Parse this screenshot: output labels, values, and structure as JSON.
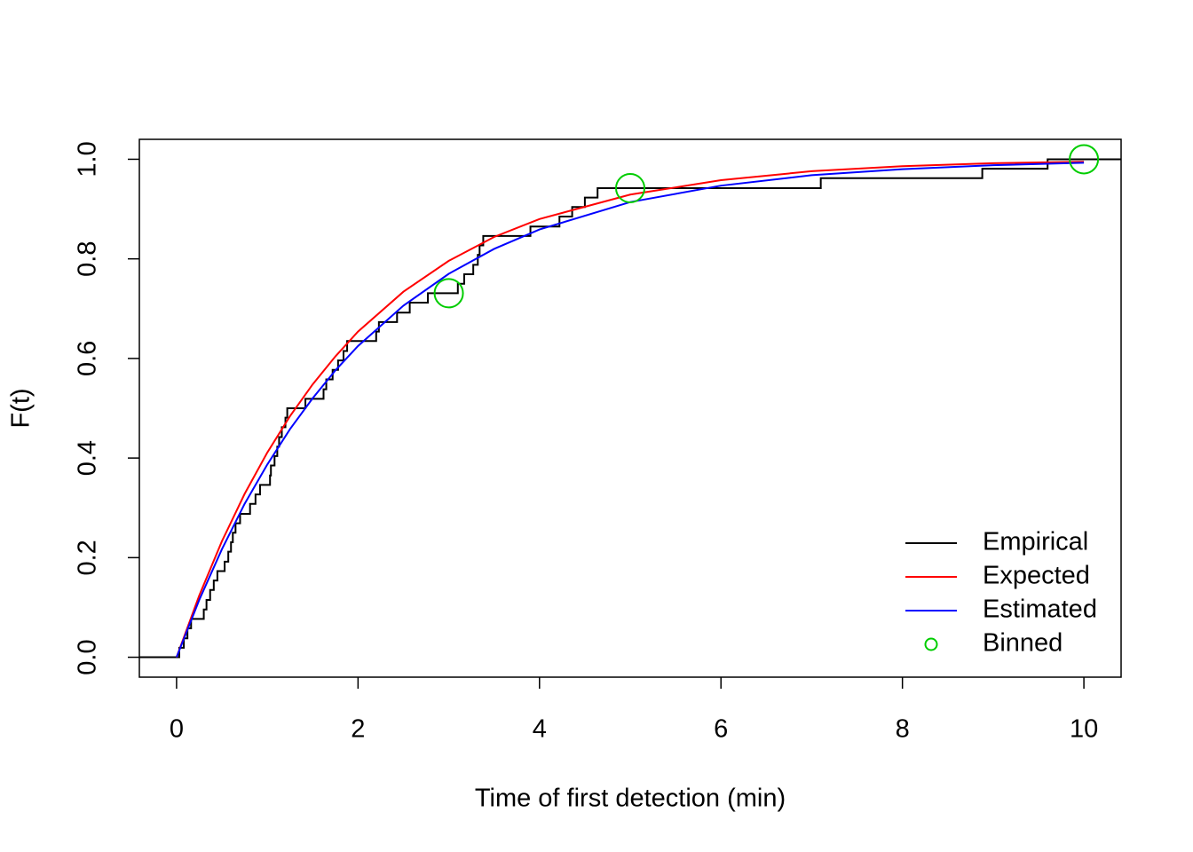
{
  "chart_data": {
    "type": "line",
    "x_label": "Time of first detection (min)",
    "y_label": "F(t)",
    "xlim": [
      -0.41,
      10.41
    ],
    "ylim": [
      -0.04,
      1.04
    ],
    "xticks": [
      0,
      2,
      4,
      6,
      8,
      10
    ],
    "yticks": [
      {
        "value": 0,
        "label": "0.0"
      },
      0.2,
      0.4,
      0.6,
      0.8,
      {
        "value": 1,
        "label": "1.0"
      }
    ],
    "legend": "bottom-right",
    "series": [
      {
        "name": "Empirical",
        "color": "#000000",
        "style": "step",
        "x": [
          0,
          0.03,
          0.08,
          0.12,
          0.16,
          0.3,
          0.33,
          0.37,
          0.41,
          0.45,
          0.53,
          0.57,
          0.6,
          0.62,
          0.65,
          0.7,
          0.81,
          0.87,
          0.92,
          1.03,
          1.04,
          1.08,
          1.11,
          1.13,
          1.16,
          1.2,
          1.22,
          1.42,
          1.62,
          1.65,
          1.72,
          1.78,
          1.84,
          1.88,
          2.2,
          2.23,
          2.43,
          2.57,
          2.77,
          3.1,
          3.17,
          3.27,
          3.32,
          3.34,
          3.38,
          3.9,
          4.22,
          4.36,
          4.5,
          4.64,
          7.1,
          8.88,
          9.6
        ],
        "values": [
          0,
          0.019,
          0.038,
          0.058,
          0.077,
          0.096,
          0.115,
          0.135,
          0.154,
          0.173,
          0.192,
          0.212,
          0.231,
          0.25,
          0.269,
          0.288,
          0.308,
          0.327,
          0.346,
          0.365,
          0.385,
          0.404,
          0.423,
          0.442,
          0.462,
          0.481,
          0.5,
          0.519,
          0.538,
          0.558,
          0.577,
          0.596,
          0.615,
          0.635,
          0.654,
          0.673,
          0.692,
          0.712,
          0.731,
          0.75,
          0.769,
          0.788,
          0.808,
          0.827,
          0.846,
          0.865,
          0.885,
          0.904,
          0.923,
          0.942,
          0.962,
          0.981,
          1.0
        ]
      },
      {
        "name": "Expected",
        "color": "#ff0000",
        "style": "line",
        "x": [
          0,
          0.25,
          0.5,
          0.75,
          1,
          1.25,
          1.5,
          1.75,
          2,
          2.5,
          3,
          3.5,
          4,
          5,
          6,
          7,
          8,
          9,
          10
        ],
        "values": [
          0,
          0.124,
          0.233,
          0.328,
          0.411,
          0.484,
          0.548,
          0.604,
          0.654,
          0.734,
          0.796,
          0.844,
          0.88,
          0.929,
          0.958,
          0.976,
          0.986,
          0.992,
          0.995
        ]
      },
      {
        "name": "Estimated",
        "color": "#0000ff",
        "style": "line",
        "x": [
          0,
          0.25,
          0.5,
          0.75,
          1,
          1.25,
          1.5,
          1.75,
          2,
          2.5,
          3,
          3.5,
          4,
          5,
          6,
          7,
          8,
          9,
          10
        ],
        "values": [
          0,
          0.115,
          0.217,
          0.308,
          0.387,
          0.458,
          0.52,
          0.576,
          0.625,
          0.706,
          0.77,
          0.82,
          0.859,
          0.914,
          0.947,
          0.968,
          0.98,
          0.988,
          0.993
        ]
      },
      {
        "name": "Binned",
        "color": "#00cd00",
        "style": "points",
        "x": [
          3,
          5,
          10
        ],
        "values": [
          0.731,
          0.942,
          1.0
        ]
      }
    ]
  }
}
